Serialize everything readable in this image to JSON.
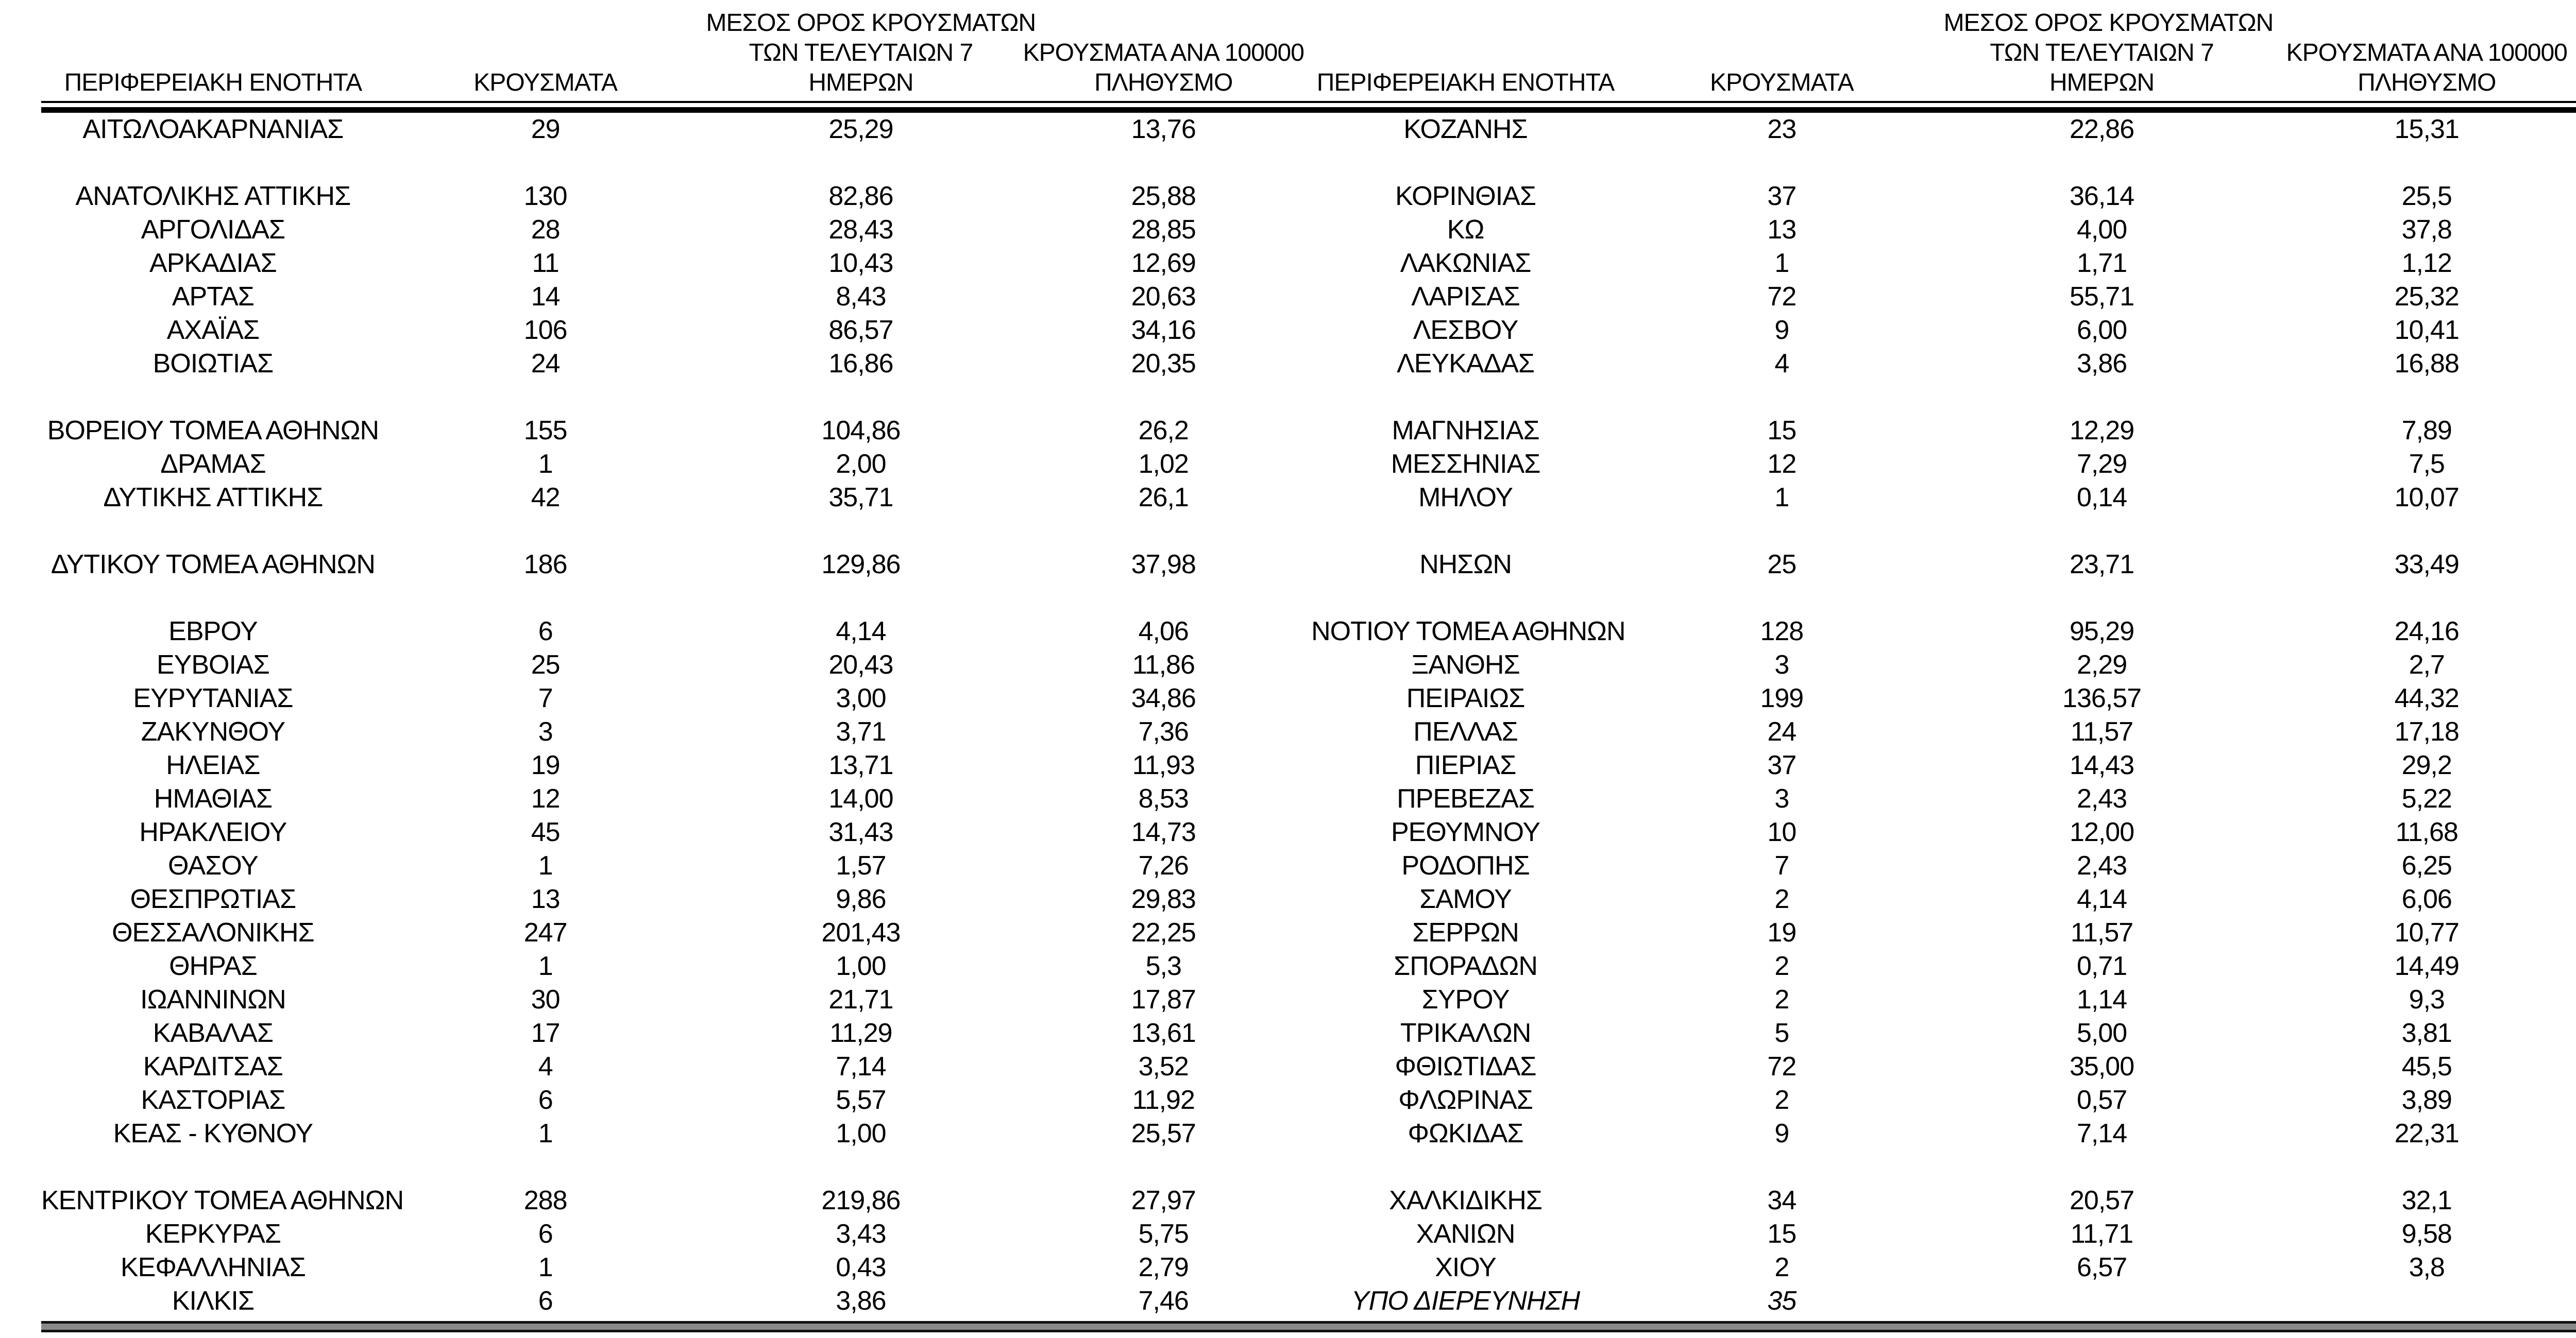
{
  "table": {
    "headers": {
      "region": "ΠΕΡΙΦΕΡΕΙΑΚΗ ΕΝΟΤΗΤΑ",
      "cases": "ΚΡΟΥΣΜΑΤΑ",
      "avg7_lines": [
        "ΜΕΣΟΣ ΟΡΟΣ ΚΡΟΥΣΜΑΤΩΝ",
        "ΤΩΝ ΤΕΛΕΥΤΑΙΩΝ 7",
        "ΗΜΕΡΩΝ"
      ],
      "per100k_lines": [
        "ΚΡΟΥΣΜΑΤΑ ΑΝΑ 100000",
        "ΠΛΗΘΥΣΜΟ"
      ]
    },
    "left_rows": [
      {
        "name": "ΑΙΤΩΛΟΑΚΑΡΝΑΝΙΑΣ",
        "cases": "29",
        "avg7": "25,29",
        "per100k": "13,76"
      },
      null,
      {
        "name": "ΑΝΑΤΟΛΙΚΗΣ ΑΤΤΙΚΗΣ",
        "cases": "130",
        "avg7": "82,86",
        "per100k": "25,88"
      },
      {
        "name": "ΑΡΓΟΛΙΔΑΣ",
        "cases": "28",
        "avg7": "28,43",
        "per100k": "28,85"
      },
      {
        "name": "ΑΡΚΑΔΙΑΣ",
        "cases": "11",
        "avg7": "10,43",
        "per100k": "12,69"
      },
      {
        "name": "ΑΡΤΑΣ",
        "cases": "14",
        "avg7": "8,43",
        "per100k": "20,63"
      },
      {
        "name": "ΑΧΑΪΑΣ",
        "cases": "106",
        "avg7": "86,57",
        "per100k": "34,16"
      },
      {
        "name": "ΒΟΙΩΤΙΑΣ",
        "cases": "24",
        "avg7": "16,86",
        "per100k": "20,35"
      },
      null,
      {
        "name": "ΒΟΡΕΙΟΥ ΤΟΜΕΑ ΑΘΗΝΩΝ",
        "cases": "155",
        "avg7": "104,86",
        "per100k": "26,2"
      },
      {
        "name": "ΔΡΑΜΑΣ",
        "cases": "1",
        "avg7": "2,00",
        "per100k": "1,02"
      },
      {
        "name": "ΔΥΤΙΚΗΣ ΑΤΤΙΚΗΣ",
        "cases": "42",
        "avg7": "35,71",
        "per100k": "26,1"
      },
      null,
      {
        "name": "ΔΥΤΙΚΟΥ ΤΟΜΕΑ ΑΘΗΝΩΝ",
        "cases": "186",
        "avg7": "129,86",
        "per100k": "37,98"
      },
      null,
      {
        "name": "ΕΒΡΟΥ",
        "cases": "6",
        "avg7": "4,14",
        "per100k": "4,06"
      },
      {
        "name": "ΕΥΒΟΙΑΣ",
        "cases": "25",
        "avg7": "20,43",
        "per100k": "11,86"
      },
      {
        "name": "ΕΥΡΥΤΑΝΙΑΣ",
        "cases": "7",
        "avg7": "3,00",
        "per100k": "34,86"
      },
      {
        "name": "ΖΑΚΥΝΘΟΥ",
        "cases": "3",
        "avg7": "3,71",
        "per100k": "7,36"
      },
      {
        "name": "ΗΛΕΙΑΣ",
        "cases": "19",
        "avg7": "13,71",
        "per100k": "11,93"
      },
      {
        "name": "ΗΜΑΘΙΑΣ",
        "cases": "12",
        "avg7": "14,00",
        "per100k": "8,53"
      },
      {
        "name": "ΗΡΑΚΛΕΙΟΥ",
        "cases": "45",
        "avg7": "31,43",
        "per100k": "14,73"
      },
      {
        "name": "ΘΑΣΟΥ",
        "cases": "1",
        "avg7": "1,57",
        "per100k": "7,26"
      },
      {
        "name": "ΘΕΣΠΡΩΤΙΑΣ",
        "cases": "13",
        "avg7": "9,86",
        "per100k": "29,83"
      },
      {
        "name": "ΘΕΣΣΑΛΟΝΙΚΗΣ",
        "cases": "247",
        "avg7": "201,43",
        "per100k": "22,25"
      },
      {
        "name": "ΘΗΡΑΣ",
        "cases": "1",
        "avg7": "1,00",
        "per100k": "5,3"
      },
      {
        "name": "ΙΩΑΝΝΙΝΩΝ",
        "cases": "30",
        "avg7": "21,71",
        "per100k": "17,87"
      },
      {
        "name": "ΚΑΒΑΛΑΣ",
        "cases": "17",
        "avg7": "11,29",
        "per100k": "13,61"
      },
      {
        "name": "ΚΑΡΔΙΤΣΑΣ",
        "cases": "4",
        "avg7": "7,14",
        "per100k": "3,52"
      },
      {
        "name": "ΚΑΣΤΟΡΙΑΣ",
        "cases": "6",
        "avg7": "5,57",
        "per100k": "11,92"
      },
      {
        "name": "ΚΕΑΣ - ΚΥΘΝΟΥ",
        "cases": "1",
        "avg7": "1,00",
        "per100k": "25,57"
      },
      null,
      {
        "name": "ΚΕΝΤΡΙΚΟΥ ΤΟΜΕΑ ΑΘΗΝΩΝ",
        "cases": "288",
        "avg7": "219,86",
        "per100k": "27,97"
      },
      {
        "name": "ΚΕΡΚΥΡΑΣ",
        "cases": "6",
        "avg7": "3,43",
        "per100k": "5,75"
      },
      {
        "name": "ΚΕΦΑΛΛΗΝΙΑΣ",
        "cases": "1",
        "avg7": "0,43",
        "per100k": "2,79"
      },
      {
        "name": "ΚΙΛΚΙΣ",
        "cases": "6",
        "avg7": "3,86",
        "per100k": "7,46"
      }
    ],
    "right_rows": [
      {
        "name": "ΚΟΖΑΝΗΣ",
        "cases": "23",
        "avg7": "22,86",
        "per100k": "15,31"
      },
      null,
      {
        "name": "ΚΟΡΙΝΘΙΑΣ",
        "cases": "37",
        "avg7": "36,14",
        "per100k": "25,5"
      },
      {
        "name": "ΚΩ",
        "cases": "13",
        "avg7": "4,00",
        "per100k": "37,8"
      },
      {
        "name": "ΛΑΚΩΝΙΑΣ",
        "cases": "1",
        "avg7": "1,71",
        "per100k": "1,12"
      },
      {
        "name": "ΛΑΡΙΣΑΣ",
        "cases": "72",
        "avg7": "55,71",
        "per100k": "25,32"
      },
      {
        "name": "ΛΕΣΒΟΥ",
        "cases": "9",
        "avg7": "6,00",
        "per100k": "10,41"
      },
      {
        "name": "ΛΕΥΚΑΔΑΣ",
        "cases": "4",
        "avg7": "3,86",
        "per100k": "16,88"
      },
      null,
      {
        "name": "ΜΑΓΝΗΣΙΑΣ",
        "cases": "15",
        "avg7": "12,29",
        "per100k": "7,89"
      },
      {
        "name": "ΜΕΣΣΗΝΙΑΣ",
        "cases": "12",
        "avg7": "7,29",
        "per100k": "7,5"
      },
      {
        "name": "ΜΗΛΟΥ",
        "cases": "1",
        "avg7": "0,14",
        "per100k": "10,07"
      },
      null,
      {
        "name": "ΝΗΣΩΝ",
        "cases": "25",
        "avg7": "23,71",
        "per100k": "33,49"
      },
      null,
      {
        "name": "ΝΟΤΙΟΥ ΤΟΜΕΑ ΑΘΗΝΩΝ",
        "cases": "128",
        "avg7": "95,29",
        "per100k": "24,16"
      },
      {
        "name": "ΞΑΝΘΗΣ",
        "cases": "3",
        "avg7": "2,29",
        "per100k": "2,7"
      },
      {
        "name": "ΠΕΙΡΑΙΩΣ",
        "cases": "199",
        "avg7": "136,57",
        "per100k": "44,32"
      },
      {
        "name": "ΠΕΛΛΑΣ",
        "cases": "24",
        "avg7": "11,57",
        "per100k": "17,18"
      },
      {
        "name": "ΠΙΕΡΙΑΣ",
        "cases": "37",
        "avg7": "14,43",
        "per100k": "29,2"
      },
      {
        "name": "ΠΡΕΒΕΖΑΣ",
        "cases": "3",
        "avg7": "2,43",
        "per100k": "5,22"
      },
      {
        "name": "ΡΕΘΥΜΝΟΥ",
        "cases": "10",
        "avg7": "12,00",
        "per100k": "11,68"
      },
      {
        "name": "ΡΟΔΟΠΗΣ",
        "cases": "7",
        "avg7": "2,43",
        "per100k": "6,25"
      },
      {
        "name": "ΣΑΜΟΥ",
        "cases": "2",
        "avg7": "4,14",
        "per100k": "6,06"
      },
      {
        "name": "ΣΕΡΡΩΝ",
        "cases": "19",
        "avg7": "11,57",
        "per100k": "10,77"
      },
      {
        "name": "ΣΠΟΡΑΔΩΝ",
        "cases": "2",
        "avg7": "0,71",
        "per100k": "14,49"
      },
      {
        "name": "ΣΥΡΟΥ",
        "cases": "2",
        "avg7": "1,14",
        "per100k": "9,3"
      },
      {
        "name": "ΤΡΙΚΑΛΩΝ",
        "cases": "5",
        "avg7": "5,00",
        "per100k": "3,81"
      },
      {
        "name": "ΦΘΙΩΤΙΔΑΣ",
        "cases": "72",
        "avg7": "35,00",
        "per100k": "45,5"
      },
      {
        "name": "ΦΛΩΡΙΝΑΣ",
        "cases": "2",
        "avg7": "0,57",
        "per100k": "3,89"
      },
      {
        "name": "ΦΩΚΙΔΑΣ",
        "cases": "9",
        "avg7": "7,14",
        "per100k": "22,31"
      },
      null,
      {
        "name": "ΧΑΛΚΙΔΙΚΗΣ",
        "cases": "34",
        "avg7": "20,57",
        "per100k": "32,1"
      },
      {
        "name": "ΧΑΝΙΩΝ",
        "cases": "15",
        "avg7": "11,71",
        "per100k": "9,58"
      },
      {
        "name": "ΧΙΟΥ",
        "cases": "2",
        "avg7": "6,57",
        "per100k": "3,8"
      },
      {
        "name": "ΥΠΟ ΔΙΕΡΕΥΝΗΣΗ",
        "cases": "35",
        "avg7": "",
        "per100k": "",
        "emphasis": "italic"
      }
    ]
  },
  "colors": {
    "text": "#000000",
    "background": "#ffffff",
    "rule": "#000000"
  }
}
